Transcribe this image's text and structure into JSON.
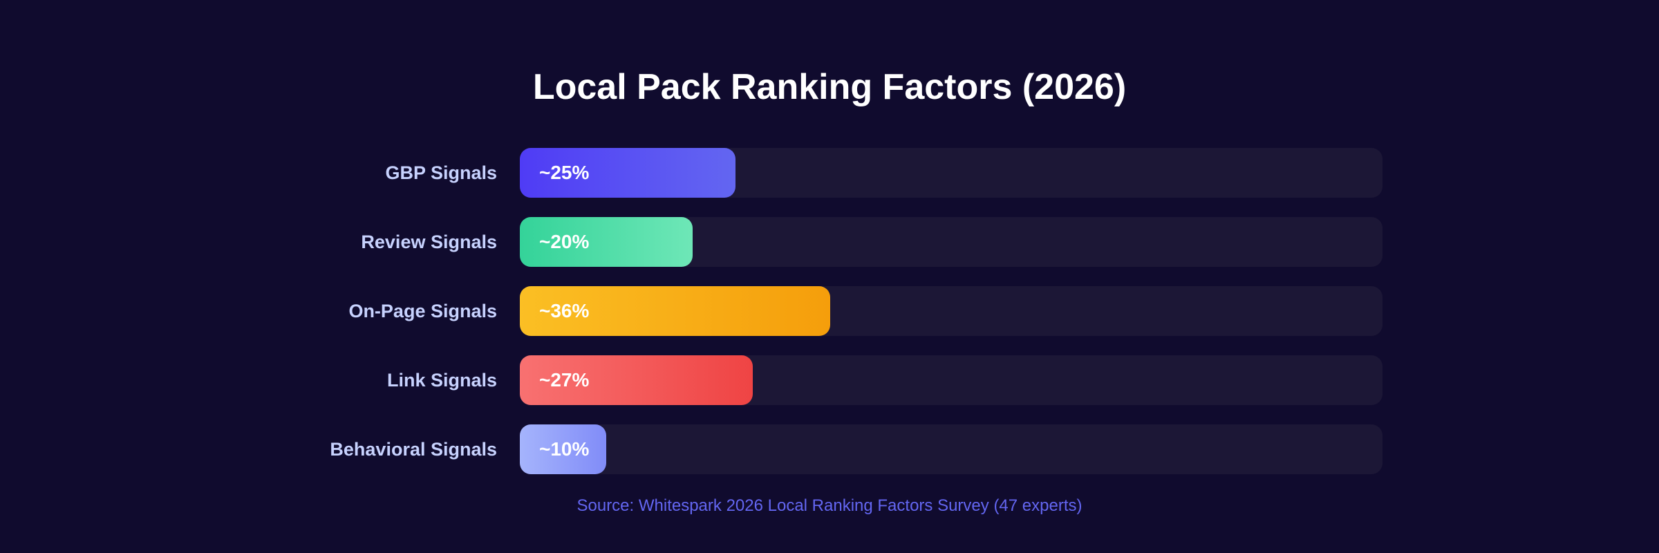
{
  "chart_data": {
    "type": "bar",
    "orientation": "horizontal",
    "title": "Local Pack Ranking Factors (2026)",
    "categories": [
      "GBP Signals",
      "Review Signals",
      "On-Page Signals",
      "Link Signals",
      "Behavioral Signals"
    ],
    "values": [
      25,
      20,
      36,
      27,
      10
    ],
    "data_labels": [
      "~25%",
      "~20%",
      "~36%",
      "~27%",
      "~10%"
    ],
    "xlim": [
      0,
      100
    ],
    "unit": "%",
    "colors": [
      [
        "#4f3cf5",
        "#6366f1"
      ],
      [
        "#34d399",
        "#6ee7b7"
      ],
      [
        "#fbbf24",
        "#f59e0b"
      ],
      [
        "#f87171",
        "#ef4444"
      ],
      [
        "#a5b4fc",
        "#818cf8"
      ]
    ],
    "track_color": "#1c1736",
    "background": "#100b2e",
    "source": "Source: Whitespark 2026 Local Ranking Factors Survey (47 experts)"
  }
}
